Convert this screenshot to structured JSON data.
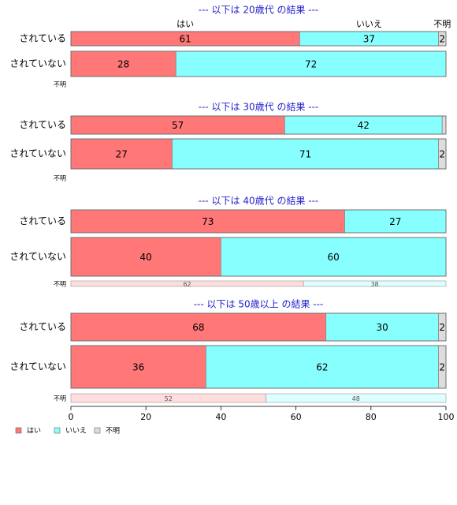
{
  "chart_data": {
    "type": "bar",
    "orientation": "horizontal",
    "stacked": "percent",
    "xlim": [
      0,
      100
    ],
    "x_ticks": [
      0,
      20,
      40,
      60,
      80,
      100
    ],
    "categories_header": [
      "はい",
      "いいえ",
      "不明"
    ],
    "legend": {
      "placement": "bottom-left",
      "entries": [
        {
          "label": "はい",
          "color": "#ff7777"
        },
        {
          "label": "いいえ",
          "color": "#88ffff"
        },
        {
          "label": "不明",
          "color": "#dddddd"
        }
      ]
    },
    "panels": [
      {
        "title": "--- 以下は 20歳代 の結果 ---",
        "rows": [
          {
            "label": "されている",
            "values": [
              61,
              37,
              2
            ]
          },
          {
            "label": "されていない",
            "values": [
              28,
              72,
              0
            ]
          }
        ],
        "unknown_label": "不明",
        "unknown_values": null
      },
      {
        "title": "--- 以下は 30歳代 の結果 ---",
        "rows": [
          {
            "label": "されている",
            "values": [
              57,
              42,
              1
            ]
          },
          {
            "label": "されていない",
            "values": [
              27,
              71,
              2
            ]
          }
        ],
        "unknown_label": "不明",
        "unknown_values": null
      },
      {
        "title": "--- 以下は 40歳代 の結果 ---",
        "rows": [
          {
            "label": "されている",
            "values": [
              73,
              27,
              0
            ]
          },
          {
            "label": "されていない",
            "values": [
              40,
              60,
              0
            ]
          }
        ],
        "unknown_label": "不明",
        "unknown_values": [
          62,
          38
        ]
      },
      {
        "title": "--- 以下は 50歳以上 の結果 ---",
        "rows": [
          {
            "label": "されている",
            "values": [
              68,
              30,
              2
            ]
          },
          {
            "label": "されていない",
            "values": [
              36,
              62,
              2
            ]
          }
        ],
        "unknown_label": "不明",
        "unknown_values": [
          52,
          48
        ]
      }
    ],
    "colors": {
      "yes": "#ff7777",
      "no": "#88ffff",
      "unknown": "#dddddd",
      "yes_light": "#ffdddd",
      "no_light": "#ddffff",
      "title": "#2222cc"
    }
  }
}
